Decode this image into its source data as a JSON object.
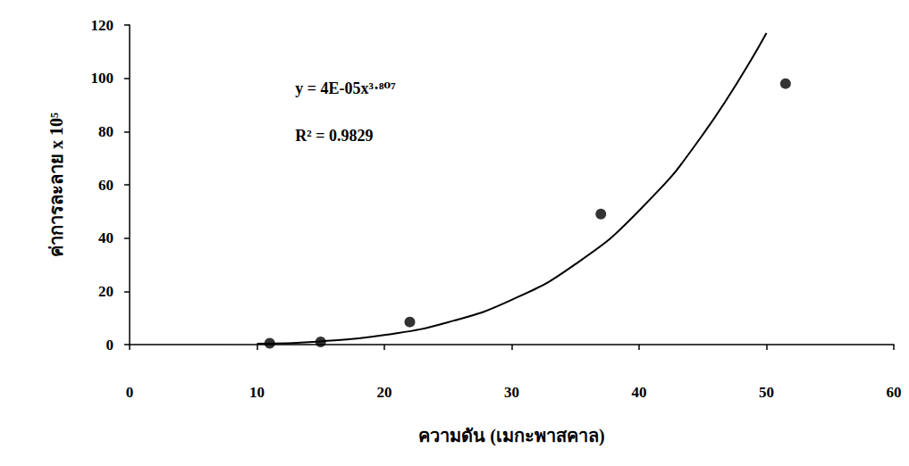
{
  "chart_data": {
    "type": "scatter",
    "x_label": "ความดัน (เมกะพาสคาล)",
    "y_label": "ค่าการละลาย x 10⁵",
    "annotations": [
      "y = 4E-05x³·⁸⁰⁷",
      "R² = 0.9829"
    ],
    "xlim": [
      0,
      60
    ],
    "xticks": [
      0,
      10,
      20,
      30,
      40,
      50,
      60
    ],
    "ylim": [
      0,
      120
    ],
    "yticks": [
      0,
      20,
      40,
      60,
      80,
      100,
      120
    ],
    "grid": false,
    "series": [
      {
        "type": "scatter",
        "color": "#000000",
        "marker": "circle",
        "x": [
          11,
          15,
          22,
          37,
          51.5
        ],
        "values": [
          0.5,
          1,
          8.5,
          49,
          98
        ]
      },
      {
        "type": "line",
        "color": "#000000",
        "line_style": "solid",
        "marker": "none",
        "x": [
          10,
          15,
          20,
          25,
          30,
          35,
          40,
          45,
          50
        ],
        "values": [
          0.3,
          1.2,
          3.6,
          8.4,
          16.8,
          30.2,
          50.3,
          78.8,
          117
        ]
      }
    ]
  }
}
